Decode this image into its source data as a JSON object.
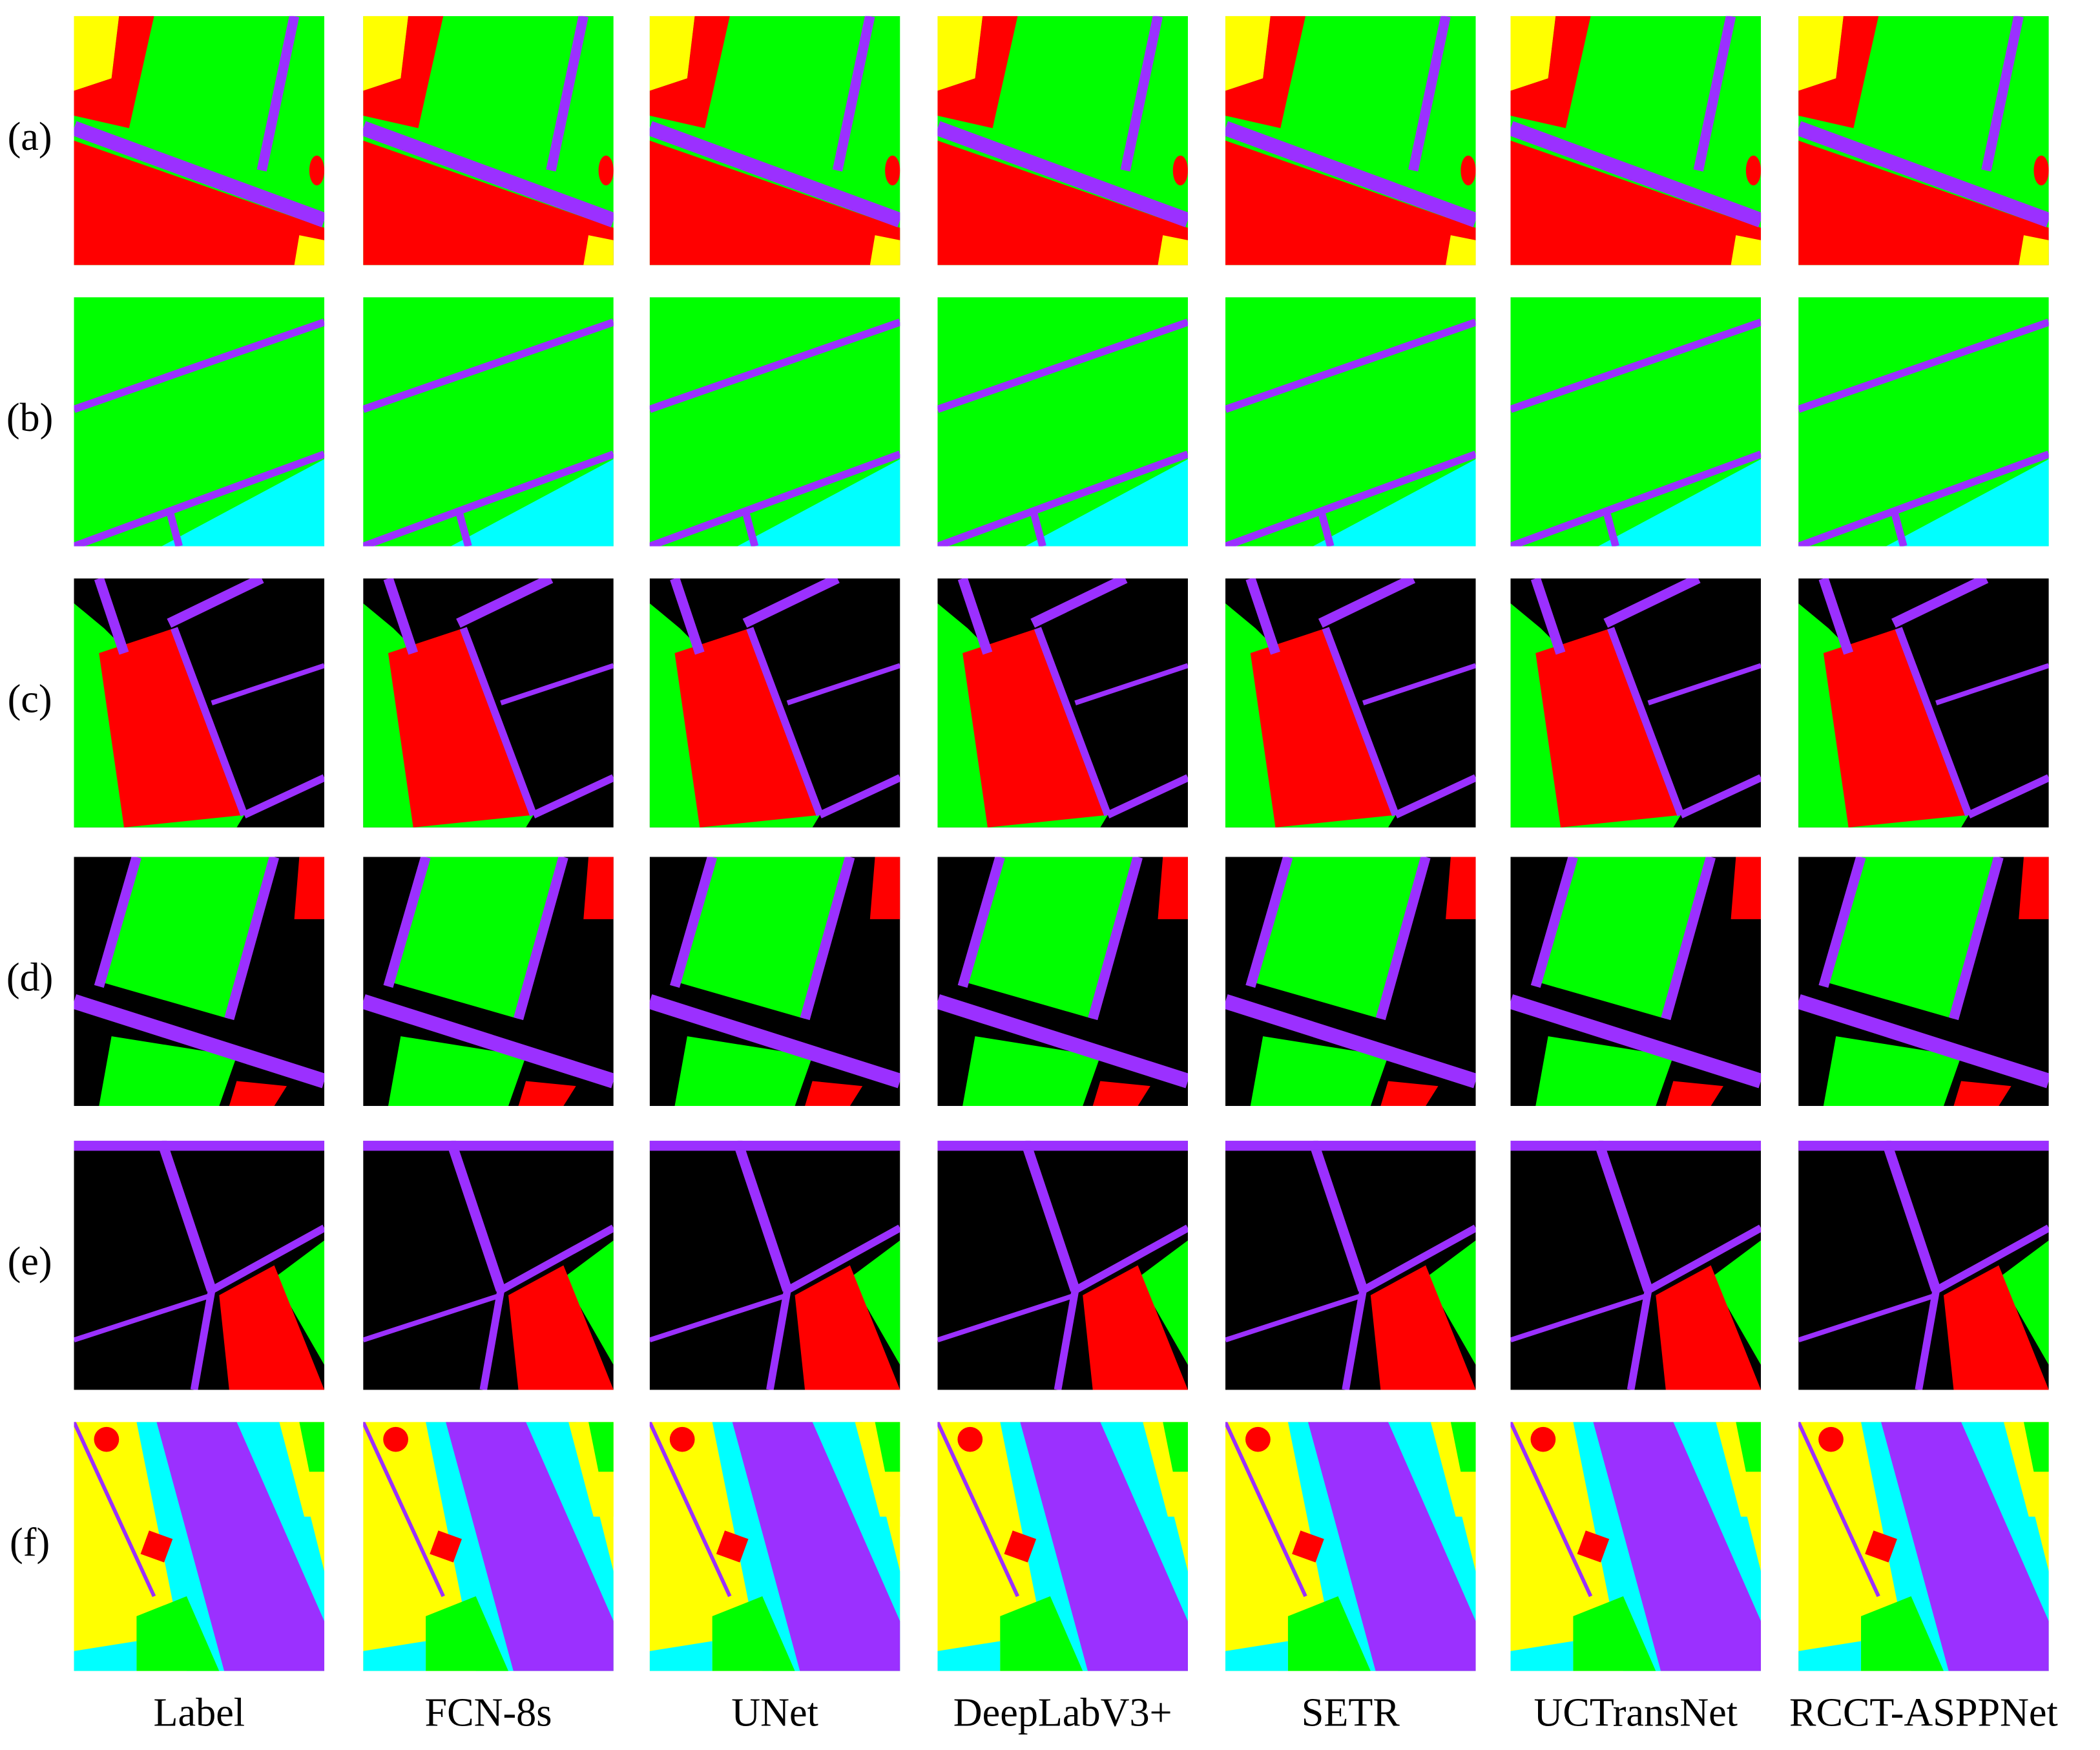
{
  "row_labels": [
    "(a)",
    "(b)",
    "(c)",
    "(d)",
    "(e)",
    "(f)"
  ],
  "column_labels": [
    "Label",
    "FCN-8s",
    "UNet",
    "DeepLabV3+",
    "SETR",
    "UCTransNet",
    "RCCT-ASPPNet"
  ]
}
